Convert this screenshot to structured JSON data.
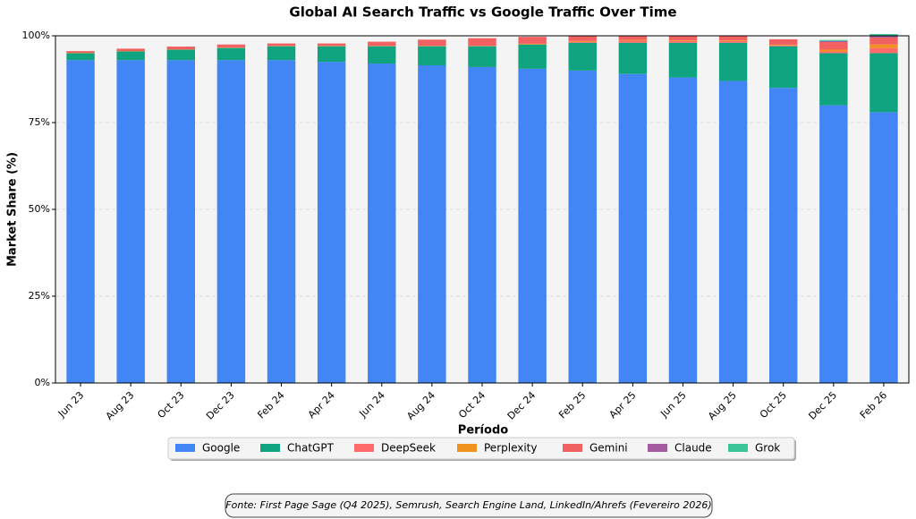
{
  "chart_data": {
    "type": "stacked-bar",
    "title": "Global AI Search Traffic vs Google Traffic Over Time",
    "x_label": "Período",
    "y_label": "Market Share (%)",
    "source": "Fonte: First Page Sage (Q4 2025), Semrush, Search Engine Land, LinkedIn/Ahrefs (Fevereiro 2026)",
    "categories": [
      "Jun 23",
      "Aug 23",
      "Oct 23",
      "Dec 23",
      "Feb 24",
      "Apr 24",
      "Jun 24",
      "Aug 24",
      "Oct 24",
      "Dec 24",
      "Feb 25",
      "Apr 25",
      "Jun 25",
      "Aug 25",
      "Oct 25",
      "Dec 25",
      "Feb 26"
    ],
    "series": [
      {
        "name": "Google",
        "color": "#4285f4",
        "values": [
          93,
          93,
          93,
          93,
          93,
          92.5,
          92,
          91.5,
          91,
          90.5,
          90,
          89,
          88,
          87,
          85,
          80,
          78
        ]
      },
      {
        "name": "ChatGPT",
        "color": "#10a37f",
        "values": [
          2,
          2.5,
          3,
          3.5,
          4,
          4.5,
          5,
          5.5,
          6,
          7,
          8,
          9,
          10,
          11,
          12,
          15,
          17
        ]
      },
      {
        "name": "DeepSeek",
        "color": "#ff6b6b",
        "values": [
          0,
          0,
          0,
          0,
          0,
          0,
          0,
          0,
          0,
          0,
          0.3,
          0.6,
          0.5,
          0.5,
          0.2,
          0.5,
          1.5
        ]
      },
      {
        "name": "Perplexity",
        "color": "#f0931e",
        "values": [
          0.1,
          0.1,
          0.1,
          0.1,
          0.1,
          0.1,
          0.1,
          0.1,
          0.1,
          0.2,
          0.2,
          0.2,
          0.2,
          0.2,
          0.2,
          0.5,
          1
        ]
      },
      {
        "name": "Gemini",
        "color": "#f26161",
        "values": [
          0.5,
          0.7,
          0.8,
          0.9,
          0.7,
          0.7,
          1.2,
          1.8,
          2.2,
          2,
          1.5,
          1.2,
          1.3,
          1.3,
          1.6,
          2.2,
          2
        ]
      },
      {
        "name": "Claude",
        "color": "#a45ba0",
        "values": [
          0,
          0,
          0,
          0,
          0,
          0,
          0,
          0,
          0,
          0,
          0,
          0,
          0,
          0,
          0,
          0.3,
          0.5
        ]
      },
      {
        "name": "Grok",
        "color": "#3cc49b",
        "values": [
          0,
          0,
          0,
          0,
          0,
          0,
          0,
          0,
          0,
          0,
          0,
          0,
          0,
          0,
          0,
          0.3,
          0.5
        ]
      }
    ],
    "ylim": [
      0,
      100
    ],
    "yticks": [
      {
        "value": 0,
        "label": "0%"
      },
      {
        "value": 25,
        "label": "25%"
      },
      {
        "value": 50,
        "label": "50%"
      },
      {
        "value": 75,
        "label": "75%"
      },
      {
        "value": 100,
        "label": "100%"
      }
    ],
    "grid": true,
    "legend": "bottom"
  }
}
